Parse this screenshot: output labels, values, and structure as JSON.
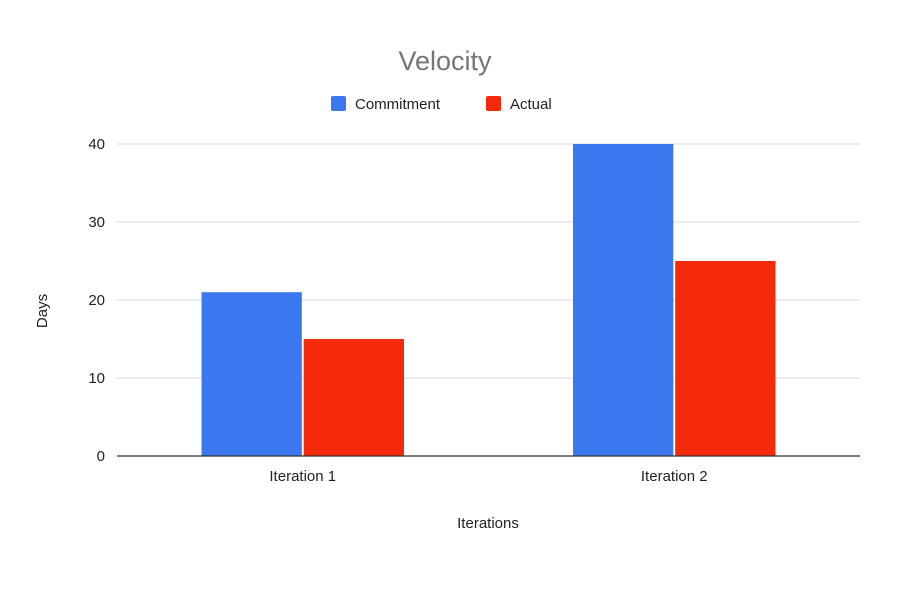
{
  "chart_data": {
    "type": "bar",
    "title": "Velocity",
    "xlabel": "Iterations",
    "ylabel": "Days",
    "categories": [
      "Iteration 1",
      "Iteration 2"
    ],
    "series": [
      {
        "name": "Commitment",
        "color": "#3b78f0",
        "values": [
          21,
          40
        ]
      },
      {
        "name": "Actual",
        "color": "#f52a0c",
        "values": [
          15,
          25
        ]
      }
    ],
    "ylim": [
      0,
      40
    ],
    "yticks": [
      "0",
      "10",
      "20",
      "30",
      "40"
    ],
    "grid": true,
    "legend_position": "top"
  }
}
